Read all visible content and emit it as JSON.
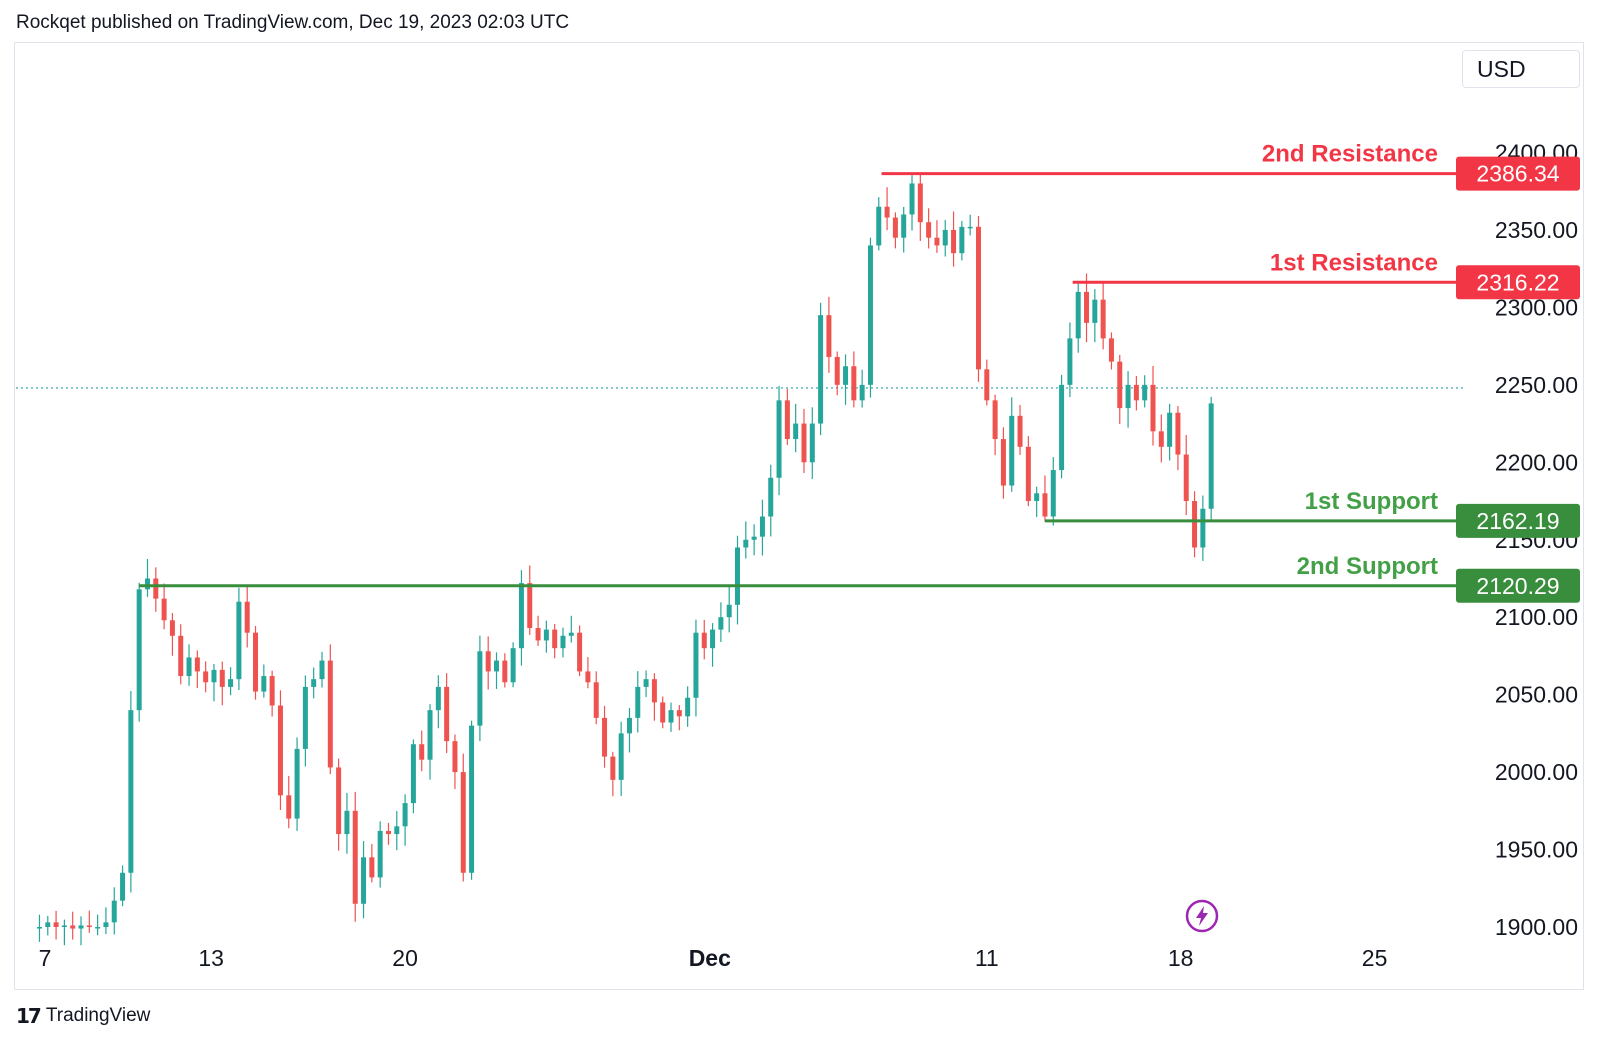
{
  "header": {
    "published_text": "Rockqet published on TradingView.com, Dec 19, 2023 02:03 UTC"
  },
  "currency": {
    "label": "USD"
  },
  "footer": {
    "logo_text": "17",
    "brand": "TradingView"
  },
  "colors": {
    "up": "#26a69a",
    "down": "#ef5350",
    "resistance": "#f23645",
    "support": "#388e3c",
    "support_text": "#43a047",
    "dotted_line": "#26a69a",
    "lightning": "#9c27b0"
  },
  "lightning": {
    "icon": "lightning-icon"
  },
  "chart_data": {
    "type": "candlestick",
    "y_axis": {
      "ticks": [
        {
          "value": 2400,
          "label": "2400.00"
        },
        {
          "value": 2350,
          "label": "2350.00"
        },
        {
          "value": 2300,
          "label": "2300.00"
        },
        {
          "value": 2250,
          "label": "2250.00"
        },
        {
          "value": 2200,
          "label": "2200.00"
        },
        {
          "value": 2150,
          "label": "2150.00"
        },
        {
          "value": 2100,
          "label": "2100.00"
        },
        {
          "value": 2050,
          "label": "2050.00"
        },
        {
          "value": 2000,
          "label": "2000.00"
        },
        {
          "value": 1950,
          "label": "1950.00"
        },
        {
          "value": 1900,
          "label": "1900.00"
        }
      ],
      "position": "right"
    },
    "x_axis": {
      "ticks": [
        {
          "day": 7,
          "label": "7"
        },
        {
          "day": 13,
          "label": "13"
        },
        {
          "day": 20,
          "label": "20"
        },
        {
          "day": 31,
          "label": "Dec",
          "bold": true
        },
        {
          "day": 41,
          "label": "11"
        },
        {
          "day": 48,
          "label": "18"
        },
        {
          "day": 55,
          "label": "25"
        }
      ]
    },
    "current_price": 2248,
    "levels": [
      {
        "name": "2nd Resistance",
        "value": 2386.34,
        "label": "2386.34",
        "kind": "resistance",
        "start_day": 37.2
      },
      {
        "name": "1st Resistance",
        "value": 2316.22,
        "label": "2316.22",
        "kind": "resistance",
        "start_day": 44.1
      },
      {
        "name": "1st Support",
        "value": 2162.19,
        "label": "2162.19",
        "kind": "support",
        "start_day": 43.1
      },
      {
        "name": "2nd Support",
        "value": 2120.29,
        "label": "2120.29",
        "kind": "support",
        "start_day": 10.4
      }
    ],
    "closes": [
      {
        "day": 6.8,
        "c": 1900
      },
      {
        "day": 7.1,
        "c": 1903
      },
      {
        "day": 7.4,
        "c": 1900
      },
      {
        "day": 7.7,
        "c": 1901
      },
      {
        "day": 8.0,
        "c": 1899
      },
      {
        "day": 8.3,
        "c": 1901
      },
      {
        "day": 8.6,
        "c": 1900
      },
      {
        "day": 8.9,
        "c": 1900
      },
      {
        "day": 9.2,
        "c": 1903
      },
      {
        "day": 9.5,
        "c": 1917
      },
      {
        "day": 9.8,
        "c": 1935
      },
      {
        "day": 10.1,
        "c": 2040
      },
      {
        "day": 10.4,
        "c": 2118
      },
      {
        "day": 10.7,
        "c": 2125
      },
      {
        "day": 11.0,
        "c": 2112
      },
      {
        "day": 11.3,
        "c": 2098
      },
      {
        "day": 11.6,
        "c": 2088
      },
      {
        "day": 11.9,
        "c": 2062
      },
      {
        "day": 12.2,
        "c": 2074
      },
      {
        "day": 12.5,
        "c": 2065
      },
      {
        "day": 12.8,
        "c": 2058
      },
      {
        "day": 13.1,
        "c": 2066
      },
      {
        "day": 13.4,
        "c": 2055
      },
      {
        "day": 13.7,
        "c": 2060
      },
      {
        "day": 14.0,
        "c": 2110
      },
      {
        "day": 14.3,
        "c": 2090
      },
      {
        "day": 14.6,
        "c": 2052
      },
      {
        "day": 14.9,
        "c": 2062
      },
      {
        "day": 15.2,
        "c": 2043
      },
      {
        "day": 15.5,
        "c": 1985
      },
      {
        "day": 15.8,
        "c": 1970
      },
      {
        "day": 16.1,
        "c": 2015
      },
      {
        "day": 16.4,
        "c": 2055
      },
      {
        "day": 16.7,
        "c": 2060
      },
      {
        "day": 17.0,
        "c": 2072
      },
      {
        "day": 17.3,
        "c": 2003
      },
      {
        "day": 17.6,
        "c": 1960
      },
      {
        "day": 17.9,
        "c": 1975
      },
      {
        "day": 18.2,
        "c": 1915
      },
      {
        "day": 18.5,
        "c": 1945
      },
      {
        "day": 18.8,
        "c": 1932
      },
      {
        "day": 19.1,
        "c": 1962
      },
      {
        "day": 19.4,
        "c": 1960
      },
      {
        "day": 19.7,
        "c": 1965
      },
      {
        "day": 20.0,
        "c": 1980
      },
      {
        "day": 20.3,
        "c": 2018
      },
      {
        "day": 20.6,
        "c": 2008
      },
      {
        "day": 20.9,
        "c": 2040
      },
      {
        "day": 21.2,
        "c": 2055
      },
      {
        "day": 21.5,
        "c": 2020
      },
      {
        "day": 21.8,
        "c": 2000
      },
      {
        "day": 22.1,
        "c": 1935
      },
      {
        "day": 22.4,
        "c": 2030
      },
      {
        "day": 22.7,
        "c": 2078
      },
      {
        "day": 23.0,
        "c": 2065
      },
      {
        "day": 23.3,
        "c": 2072
      },
      {
        "day": 23.6,
        "c": 2058
      },
      {
        "day": 23.9,
        "c": 2080
      },
      {
        "day": 24.2,
        "c": 2122
      },
      {
        "day": 24.5,
        "c": 2093
      },
      {
        "day": 24.8,
        "c": 2085
      },
      {
        "day": 25.1,
        "c": 2092
      },
      {
        "day": 25.4,
        "c": 2080
      },
      {
        "day": 25.7,
        "c": 2088
      },
      {
        "day": 26.0,
        "c": 2090
      },
      {
        "day": 26.3,
        "c": 2065
      },
      {
        "day": 26.6,
        "c": 2058
      },
      {
        "day": 26.9,
        "c": 2035
      },
      {
        "day": 27.2,
        "c": 2010
      },
      {
        "day": 27.5,
        "c": 1995
      },
      {
        "day": 27.8,
        "c": 2025
      },
      {
        "day": 28.1,
        "c": 2035
      },
      {
        "day": 28.4,
        "c": 2055
      },
      {
        "day": 28.7,
        "c": 2060
      },
      {
        "day": 29.0,
        "c": 2045
      },
      {
        "day": 29.3,
        "c": 2032
      },
      {
        "day": 29.6,
        "c": 2040
      },
      {
        "day": 29.9,
        "c": 2036
      },
      {
        "day": 30.2,
        "c": 2048
      },
      {
        "day": 30.5,
        "c": 2090
      },
      {
        "day": 30.8,
        "c": 2080
      },
      {
        "day": 31.1,
        "c": 2092
      },
      {
        "day": 31.4,
        "c": 2100
      },
      {
        "day": 31.7,
        "c": 2108
      },
      {
        "day": 32.0,
        "c": 2145
      },
      {
        "day": 32.3,
        "c": 2150
      },
      {
        "day": 32.6,
        "c": 2152
      },
      {
        "day": 32.9,
        "c": 2165
      },
      {
        "day": 33.2,
        "c": 2190
      },
      {
        "day": 33.5,
        "c": 2240
      },
      {
        "day": 33.8,
        "c": 2215
      },
      {
        "day": 34.1,
        "c": 2225
      },
      {
        "day": 34.4,
        "c": 2200
      },
      {
        "day": 34.7,
        "c": 2225
      },
      {
        "day": 35.0,
        "c": 2295
      },
      {
        "day": 35.3,
        "c": 2268
      },
      {
        "day": 35.6,
        "c": 2250
      },
      {
        "day": 35.9,
        "c": 2262
      },
      {
        "day": 36.2,
        "c": 2240
      },
      {
        "day": 36.5,
        "c": 2250
      },
      {
        "day": 36.8,
        "c": 2340
      },
      {
        "day": 37.1,
        "c": 2365
      },
      {
        "day": 37.4,
        "c": 2358
      },
      {
        "day": 37.7,
        "c": 2345
      },
      {
        "day": 38.0,
        "c": 2360
      },
      {
        "day": 38.3,
        "c": 2380
      },
      {
        "day": 38.6,
        "c": 2355
      },
      {
        "day": 38.9,
        "c": 2345
      },
      {
        "day": 39.2,
        "c": 2340
      },
      {
        "day": 39.5,
        "c": 2350
      },
      {
        "day": 39.8,
        "c": 2335
      },
      {
        "day": 40.1,
        "c": 2352
      },
      {
        "day": 40.4,
        "c": 2352
      },
      {
        "day": 40.7,
        "c": 2260
      },
      {
        "day": 41.0,
        "c": 2240
      },
      {
        "day": 41.3,
        "c": 2215
      },
      {
        "day": 41.6,
        "c": 2185
      },
      {
        "day": 41.9,
        "c": 2230
      },
      {
        "day": 42.2,
        "c": 2210
      },
      {
        "day": 42.5,
        "c": 2175
      },
      {
        "day": 42.8,
        "c": 2180
      },
      {
        "day": 43.1,
        "c": 2165
      },
      {
        "day": 43.4,
        "c": 2195
      },
      {
        "day": 43.7,
        "c": 2250
      },
      {
        "day": 44.0,
        "c": 2280
      },
      {
        "day": 44.3,
        "c": 2310
      },
      {
        "day": 44.6,
        "c": 2290
      },
      {
        "day": 44.9,
        "c": 2305
      },
      {
        "day": 45.2,
        "c": 2280
      },
      {
        "day": 45.5,
        "c": 2265
      },
      {
        "day": 45.8,
        "c": 2235
      },
      {
        "day": 46.1,
        "c": 2250
      },
      {
        "day": 46.4,
        "c": 2240
      },
      {
        "day": 46.7,
        "c": 2250
      },
      {
        "day": 47.0,
        "c": 2220
      },
      {
        "day": 47.3,
        "c": 2210
      },
      {
        "day": 47.6,
        "c": 2232
      },
      {
        "day": 47.9,
        "c": 2205
      },
      {
        "day": 48.2,
        "c": 2175
      },
      {
        "day": 48.5,
        "c": 2145
      },
      {
        "day": 48.8,
        "c": 2170
      },
      {
        "day": 49.1,
        "c": 2238
      }
    ]
  }
}
